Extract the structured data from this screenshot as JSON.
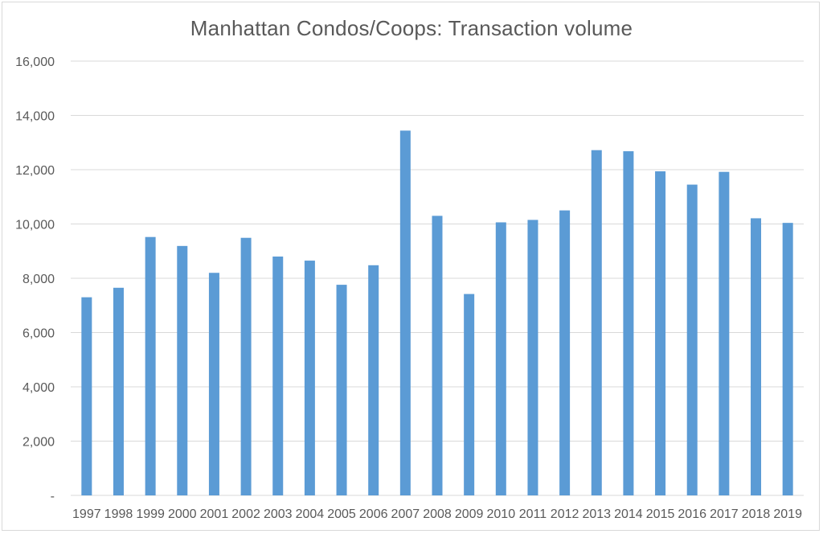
{
  "chart_data": {
    "type": "bar",
    "title": "Manhattan Condos/Coops:  Transaction volume",
    "xlabel": "",
    "ylabel": "",
    "categories": [
      "1997",
      "1998",
      "1999",
      "2000",
      "2001",
      "2002",
      "2003",
      "2004",
      "2005",
      "2006",
      "2007",
      "2008",
      "2009",
      "2010",
      "2011",
      "2012",
      "2013",
      "2014",
      "2015",
      "2016",
      "2017",
      "2018",
      "2019"
    ],
    "values": [
      7300,
      7650,
      9520,
      9190,
      8200,
      9490,
      8800,
      8650,
      7760,
      8480,
      13440,
      10300,
      7420,
      10060,
      10150,
      10500,
      12720,
      12680,
      11940,
      11450,
      11920,
      10210,
      10040
    ],
    "ylim": [
      0,
      16000
    ],
    "yticks": [
      {
        "value": 0,
        "label": "-"
      },
      {
        "value": 2000,
        "label": "2,000"
      },
      {
        "value": 4000,
        "label": "4,000"
      },
      {
        "value": 6000,
        "label": "6,000"
      },
      {
        "value": 8000,
        "label": "8,000"
      },
      {
        "value": 10000,
        "label": "10,000"
      },
      {
        "value": 12000,
        "label": "12,000"
      },
      {
        "value": 14000,
        "label": "14,000"
      },
      {
        "value": 16000,
        "label": "16,000"
      }
    ],
    "grid": true,
    "legend": "none",
    "bar_color": "#5b9bd5",
    "grid_color": "#d9d9d9",
    "text_color": "#595959"
  }
}
